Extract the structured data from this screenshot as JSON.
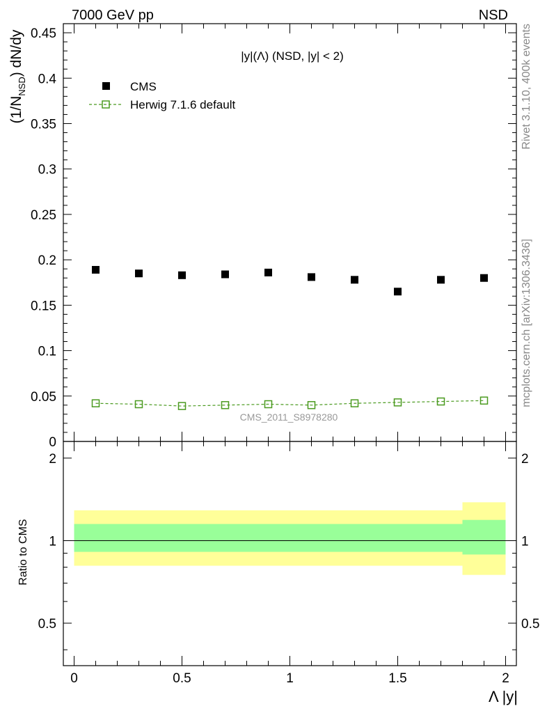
{
  "header": {
    "left": "7000 GeV pp",
    "right": "NSD"
  },
  "side_labels": {
    "top": "Rivet 3.1.10,  400k events",
    "bottom": "mcplots.cern.ch [arXiv:1306.3436]"
  },
  "chart_data": [
    {
      "type": "scatter",
      "title": "|y|(Λ) (NSD, |y| < 2)",
      "ylabel": "(1/N_NSD) dN/dy",
      "xlabel": "",
      "xlim": [
        -0.05,
        2.05
      ],
      "ylim": [
        0,
        0.46
      ],
      "yticks": [
        0,
        0.05,
        0.1,
        0.15,
        0.2,
        0.25,
        0.3,
        0.35,
        0.4,
        0.45
      ],
      "ytick_labels": [
        "0",
        "0.05",
        "0.1",
        "0.15",
        "0.2",
        "0.25",
        "0.3",
        "0.35",
        "0.4",
        "0.45"
      ],
      "legend_position": "top-left",
      "watermark": "CMS_2011_S8978280",
      "x": [
        0.1,
        0.3,
        0.5,
        0.7,
        0.9,
        1.1,
        1.3,
        1.5,
        1.7,
        1.9
      ],
      "series": [
        {
          "name": "CMS",
          "color": "#000000",
          "marker": "filled-square",
          "values": [
            0.189,
            0.185,
            0.183,
            0.184,
            0.186,
            0.181,
            0.178,
            0.165,
            0.178,
            0.18
          ]
        },
        {
          "name": "Herwig 7.1.6 default",
          "color": "#4a9a1f",
          "marker": "open-square",
          "line": "dashed",
          "values": [
            0.042,
            0.041,
            0.039,
            0.04,
            0.041,
            0.04,
            0.042,
            0.043,
            0.044,
            0.045
          ]
        }
      ]
    },
    {
      "type": "area",
      "ylabel": "Ratio to CMS",
      "xlabel": "Λ |y|",
      "xlim": [
        -0.05,
        2.05
      ],
      "ylim": [
        0.35,
        2.3
      ],
      "yticks": [
        0.5,
        1,
        2
      ],
      "ytick_labels": [
        "0.5",
        "1",
        "2"
      ],
      "xticks": [
        0,
        0.5,
        1,
        1.5,
        2
      ],
      "xtick_labels": [
        "0",
        "0.5",
        "1",
        "1.5",
        "2"
      ],
      "reference_line": 1,
      "bands": [
        {
          "name": "",
          "color": "#ffff99",
          "segments": [
            {
              "x0": 0,
              "x1": 1.8,
              "low": 0.81,
              "high": 1.29
            },
            {
              "x0": 1.8,
              "x1": 2.0,
              "low": 0.75,
              "high": 1.38
            }
          ]
        },
        {
          "name": "",
          "color": "#99ff99",
          "segments": [
            {
              "x0": 0,
              "x1": 1.8,
              "low": 0.91,
              "high": 1.15
            },
            {
              "x0": 1.8,
              "x1": 2.0,
              "low": 0.89,
              "high": 1.19
            }
          ]
        }
      ]
    }
  ]
}
